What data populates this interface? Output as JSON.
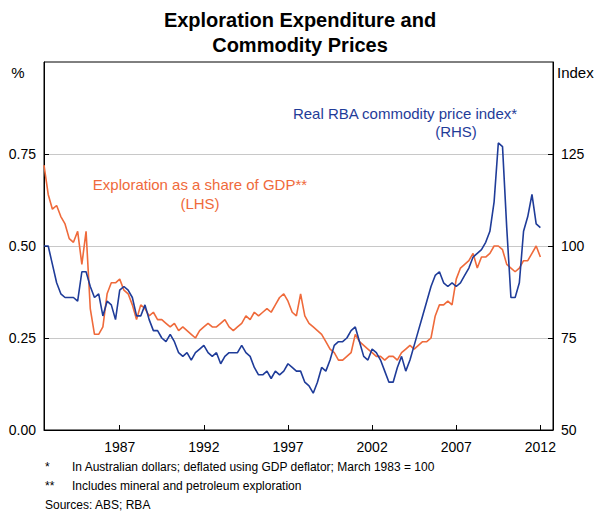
{
  "chart_data": {
    "type": "line",
    "title": "Exploration Expenditure and\nCommodity Prices",
    "ylabel": "%",
    "y2label": "Index",
    "x": [
      1982.5,
      1982.75,
      1983,
      1983.25,
      1983.5,
      1983.75,
      1984,
      1984.25,
      1984.5,
      1984.75,
      1985,
      1985.25,
      1985.5,
      1985.75,
      1986,
      1986.25,
      1986.5,
      1986.75,
      1987,
      1987.25,
      1987.5,
      1987.75,
      1988,
      1988.25,
      1988.5,
      1988.75,
      1989,
      1989.25,
      1989.5,
      1989.75,
      1990,
      1990.25,
      1990.5,
      1990.75,
      1991,
      1991.25,
      1991.5,
      1991.75,
      1992,
      1992.25,
      1992.5,
      1992.75,
      1993,
      1993.25,
      1993.5,
      1993.75,
      1994,
      1994.25,
      1994.5,
      1994.75,
      1995,
      1995.25,
      1995.5,
      1995.75,
      1996,
      1996.25,
      1996.5,
      1996.75,
      1997,
      1997.25,
      1997.5,
      1997.75,
      1998,
      1998.25,
      1998.5,
      1998.75,
      1999,
      1999.25,
      1999.5,
      1999.75,
      2000,
      2000.25,
      2000.5,
      2000.75,
      2001,
      2001.25,
      2001.5,
      2001.75,
      2002,
      2002.25,
      2002.5,
      2002.75,
      2003,
      2003.25,
      2003.5,
      2003.75,
      2004,
      2004.25,
      2004.5,
      2004.75,
      2005,
      2005.25,
      2005.5,
      2005.75,
      2006,
      2006.25,
      2006.5,
      2006.75,
      2007,
      2007.25,
      2007.5,
      2007.75,
      2008,
      2008.25,
      2008.5,
      2008.75,
      2009,
      2009.25,
      2009.5,
      2009.75,
      2010,
      2010.25,
      2010.5,
      2010.75,
      2011,
      2011.25,
      2011.5,
      2011.75,
      2012
    ],
    "xlim": [
      1982.5,
      2012.75
    ],
    "xticks": [
      1987,
      1992,
      1997,
      2002,
      2007,
      2012
    ],
    "ylim": [
      0,
      1
    ],
    "yticks": [
      {
        "value": 0,
        "label": "0.00"
      },
      0.25,
      {
        "value": 0.5,
        "label": "0.50"
      },
      0.75
    ],
    "y2lim": [
      50,
      150
    ],
    "y2ticks": [
      50,
      75,
      100,
      125
    ],
    "grid": true,
    "series": [
      {
        "name": "Exploration as a share of GDP**",
        "color": "#ef6a3b",
        "axis": "y",
        "values": [
          0.72,
          0.64,
          0.6,
          0.61,
          0.58,
          0.56,
          0.52,
          0.51,
          0.54,
          0.45,
          0.54,
          0.33,
          0.26,
          0.26,
          0.28,
          0.37,
          0.4,
          0.4,
          0.41,
          0.38,
          0.37,
          0.34,
          0.3,
          0.34,
          0.33,
          0.31,
          0.32,
          0.3,
          0.3,
          0.29,
          0.28,
          0.29,
          0.27,
          0.28,
          0.27,
          0.26,
          0.25,
          0.27,
          0.28,
          0.29,
          0.28,
          0.28,
          0.29,
          0.3,
          0.28,
          0.27,
          0.28,
          0.29,
          0.31,
          0.3,
          0.32,
          0.31,
          0.32,
          0.33,
          0.32,
          0.34,
          0.36,
          0.37,
          0.35,
          0.32,
          0.31,
          0.37,
          0.31,
          0.29,
          0.28,
          0.27,
          0.26,
          0.24,
          0.22,
          0.21,
          0.19,
          0.19,
          0.2,
          0.21,
          0.26,
          0.24,
          0.23,
          0.22,
          0.21,
          0.2,
          0.2,
          0.19,
          0.2,
          0.2,
          0.19,
          0.21,
          0.22,
          0.23,
          0.22,
          0.23,
          0.24,
          0.24,
          0.25,
          0.31,
          0.34,
          0.34,
          0.35,
          0.34,
          0.41,
          0.44,
          0.45,
          0.46,
          0.48,
          0.44,
          0.47,
          0.47,
          0.48,
          0.5,
          0.5,
          0.49,
          0.45,
          0.44,
          0.43,
          0.44,
          0.46,
          0.46,
          0.48,
          0.5,
          0.47
        ]
      },
      {
        "name": "Real RBA commodity price index*",
        "color": "#1f3c99",
        "axis": "y2",
        "values": [
          100,
          100,
          95,
          90,
          87,
          86,
          86,
          86,
          85,
          93,
          93,
          89,
          86,
          87,
          81,
          85,
          84,
          80,
          88,
          89,
          88,
          86,
          81,
          81,
          84,
          80,
          77,
          77,
          75,
          74,
          76,
          74,
          71,
          70,
          71,
          69,
          71,
          72,
          73,
          71,
          70,
          71,
          68,
          70,
          71,
          71,
          71,
          73,
          71,
          70,
          67,
          65,
          65,
          66,
          64,
          66,
          65,
          66,
          68,
          67,
          66,
          66,
          63,
          62,
          60,
          63,
          67,
          66,
          69,
          73,
          74,
          74,
          75,
          77,
          78,
          74,
          70,
          69,
          72,
          71,
          69,
          66,
          63,
          63,
          67,
          70,
          66,
          69,
          73,
          77,
          81,
          85,
          89,
          92,
          93,
          90,
          89,
          90,
          89,
          90,
          92,
          94,
          97,
          98,
          99,
          101,
          104,
          112,
          128,
          127,
          105,
          86,
          86,
          90,
          104,
          108,
          114,
          106,
          105
        ]
      }
    ],
    "annotations": [
      "(LHS)",
      "(RHS)"
    ],
    "notes": [
      {
        "mark": "*",
        "text": "In Australian dollars; deflated using GDP deflator; March 1983 = 100"
      },
      {
        "mark": "**",
        "text": "Includes mineral and petroleum exploration"
      }
    ],
    "source": "Sources: ABS; RBA"
  }
}
